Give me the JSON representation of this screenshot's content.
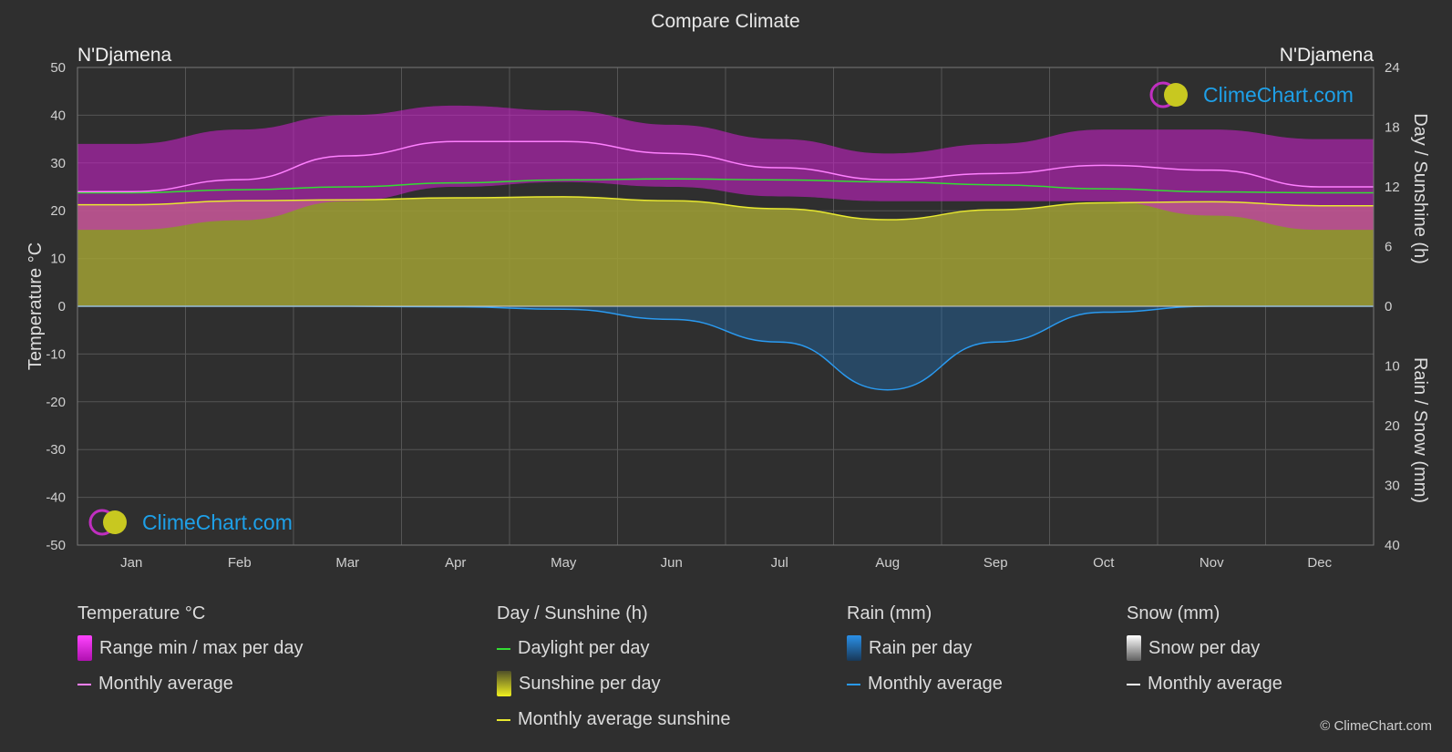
{
  "header": {
    "title": "Compare Climate",
    "city_left": "N'Djamena",
    "city_right": "N'Djamena"
  },
  "axes": {
    "left_label": "Temperature °C",
    "right_top_label": "Day / Sunshine (h)",
    "right_bottom_label": "Rain / Snow (mm)"
  },
  "legend": {
    "temperature": {
      "title": "Temperature °C",
      "range": "Range min / max per day",
      "avg": "Monthly average"
    },
    "sunshine": {
      "title": "Day / Sunshine (h)",
      "daylight": "Daylight per day",
      "sunshine": "Sunshine per day",
      "avg_sunshine": "Monthly average sunshine"
    },
    "rain": {
      "title": "Rain (mm)",
      "per_day": "Rain per day",
      "avg": "Monthly average"
    },
    "snow": {
      "title": "Snow (mm)",
      "per_day": "Snow per day",
      "avg": "Monthly average"
    }
  },
  "logo": {
    "text": "ClimeChart.com"
  },
  "copyright": "© ClimeChart.com",
  "colors": {
    "background": "#2f2f2f",
    "temp_range": "#d21fd2",
    "temp_avg": "#ff80ff",
    "daylight": "#33dd33",
    "sunshine_fill": "#a0a034",
    "sunshine_avg": "#e8e830",
    "rain": "#1e78c8",
    "rain_avg": "#2a9af0",
    "snow": "#ffffff"
  },
  "chart_data": {
    "type": "area",
    "months": [
      "Jan",
      "Feb",
      "Mar",
      "Apr",
      "May",
      "Jun",
      "Jul",
      "Aug",
      "Sep",
      "Oct",
      "Nov",
      "Dec"
    ],
    "y_left": {
      "min": -50,
      "max": 50,
      "ticks": [
        50,
        40,
        30,
        20,
        10,
        0,
        -10,
        -20,
        -30,
        -40,
        -50
      ]
    },
    "y_right_top": {
      "min": 0,
      "max": 24,
      "ticks": [
        24,
        18,
        12,
        6,
        0
      ]
    },
    "y_right_bottom": {
      "min": 0,
      "max": 40,
      "ticks": [
        0,
        10,
        20,
        30,
        40
      ]
    },
    "series": [
      {
        "name": "Range min / max per day",
        "unit": "°C",
        "min": [
          16,
          18,
          22,
          25,
          26,
          25,
          23,
          22,
          22,
          22,
          19,
          16
        ],
        "max": [
          34,
          37,
          40,
          42,
          41,
          38,
          35,
          32,
          34,
          37,
          37,
          35
        ]
      },
      {
        "name": "Monthly average",
        "unit": "°C",
        "values": [
          24,
          26.5,
          31.5,
          34.5,
          34.5,
          32,
          29,
          26.5,
          27.8,
          29.5,
          28.5,
          25
        ]
      },
      {
        "name": "Daylight per day",
        "unit": "h",
        "values": [
          11.4,
          11.7,
          12.0,
          12.4,
          12.7,
          12.8,
          12.7,
          12.5,
          12.2,
          11.8,
          11.5,
          11.4
        ]
      },
      {
        "name": "Monthly average sunshine",
        "unit": "h",
        "values": [
          10.2,
          10.6,
          10.7,
          10.9,
          11.0,
          10.6,
          9.8,
          8.7,
          9.7,
          10.4,
          10.5,
          10.1
        ]
      },
      {
        "name": "Rain monthly average",
        "unit": "mm",
        "values": [
          0,
          0,
          0,
          0.1,
          0.5,
          2.2,
          6.0,
          14.0,
          6.0,
          1.0,
          0,
          0
        ]
      },
      {
        "name": "Snow monthly average",
        "unit": "mm",
        "values": [
          0,
          0,
          0,
          0,
          0,
          0,
          0,
          0,
          0,
          0,
          0,
          0
        ]
      }
    ]
  }
}
